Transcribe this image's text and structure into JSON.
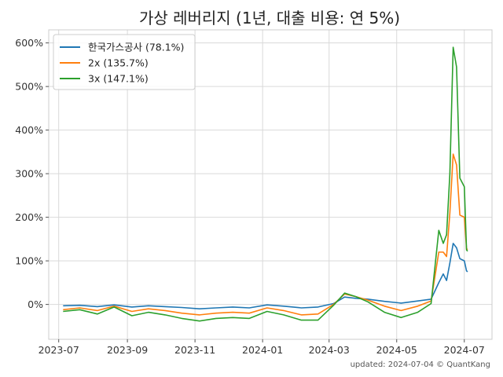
{
  "chart_data": {
    "type": "line",
    "title": "가상 레버리지 (1년, 대출 비용: 연 5%)",
    "footnote": "updated: 2024-07-04 © QuantKang",
    "xlabel": "",
    "ylabel": "",
    "ylim": [
      -80,
      630
    ],
    "xlim": [
      "2023-06-22",
      "2024-07-26"
    ],
    "x_ticks": [
      "2023-07",
      "2023-09",
      "2023-11",
      "2024-01",
      "2024-03",
      "2024-05",
      "2024-07"
    ],
    "y_ticks": [
      0,
      100,
      200,
      300,
      400,
      500,
      600
    ],
    "y_tick_labels": [
      "0%",
      "100%",
      "200%",
      "300%",
      "400%",
      "500%",
      "600%"
    ],
    "grid": true,
    "legend_position": "top-left",
    "series": [
      {
        "name": "한국가스공사 (78.1%)",
        "color": "#1f77b4",
        "points": [
          [
            "2023-07-05",
            -3
          ],
          [
            "2023-07-20",
            -2
          ],
          [
            "2023-08-05",
            -5
          ],
          [
            "2023-08-20",
            -1
          ],
          [
            "2023-09-05",
            -6
          ],
          [
            "2023-09-20",
            -3
          ],
          [
            "2023-10-05",
            -5
          ],
          [
            "2023-10-20",
            -7
          ],
          [
            "2023-11-05",
            -10
          ],
          [
            "2023-11-20",
            -8
          ],
          [
            "2023-12-05",
            -6
          ],
          [
            "2023-12-20",
            -8
          ],
          [
            "2024-01-05",
            -1
          ],
          [
            "2024-01-20",
            -4
          ],
          [
            "2024-02-05",
            -8
          ],
          [
            "2024-02-20",
            -6
          ],
          [
            "2024-03-05",
            2
          ],
          [
            "2024-03-15",
            17
          ],
          [
            "2024-03-25",
            14
          ],
          [
            "2024-04-05",
            12
          ],
          [
            "2024-04-20",
            7
          ],
          [
            "2024-05-05",
            3
          ],
          [
            "2024-05-20",
            8
          ],
          [
            "2024-06-01",
            12
          ],
          [
            "2024-06-08",
            50
          ],
          [
            "2024-06-12",
            70
          ],
          [
            "2024-06-15",
            55
          ],
          [
            "2024-06-18",
            95
          ],
          [
            "2024-06-21",
            140
          ],
          [
            "2024-06-24",
            130
          ],
          [
            "2024-06-27",
            105
          ],
          [
            "2024-07-01",
            100
          ],
          [
            "2024-07-03",
            77
          ],
          [
            "2024-07-04",
            75
          ]
        ]
      },
      {
        "name": "2x (135.7%)",
        "color": "#ff7f0e",
        "points": [
          [
            "2023-07-05",
            -12
          ],
          [
            "2023-07-20",
            -8
          ],
          [
            "2023-08-05",
            -14
          ],
          [
            "2023-08-20",
            -4
          ],
          [
            "2023-09-05",
            -16
          ],
          [
            "2023-09-20",
            -10
          ],
          [
            "2023-10-05",
            -14
          ],
          [
            "2023-10-20",
            -20
          ],
          [
            "2023-11-05",
            -24
          ],
          [
            "2023-11-20",
            -20
          ],
          [
            "2023-12-05",
            -18
          ],
          [
            "2023-12-20",
            -20
          ],
          [
            "2024-01-05",
            -8
          ],
          [
            "2024-01-20",
            -14
          ],
          [
            "2024-02-05",
            -24
          ],
          [
            "2024-02-20",
            -22
          ],
          [
            "2024-03-05",
            0
          ],
          [
            "2024-03-15",
            24
          ],
          [
            "2024-03-25",
            18
          ],
          [
            "2024-04-05",
            10
          ],
          [
            "2024-04-20",
            -4
          ],
          [
            "2024-05-05",
            -14
          ],
          [
            "2024-05-20",
            -4
          ],
          [
            "2024-06-01",
            8
          ],
          [
            "2024-06-08",
            120
          ],
          [
            "2024-06-12",
            120
          ],
          [
            "2024-06-15",
            110
          ],
          [
            "2024-06-18",
            210
          ],
          [
            "2024-06-21",
            345
          ],
          [
            "2024-06-24",
            320
          ],
          [
            "2024-06-27",
            205
          ],
          [
            "2024-07-01",
            200
          ],
          [
            "2024-07-03",
            128
          ],
          [
            "2024-07-04",
            126
          ]
        ]
      },
      {
        "name": "3x (147.1%)",
        "color": "#2ca02c",
        "points": [
          [
            "2023-07-05",
            -16
          ],
          [
            "2023-07-20",
            -12
          ],
          [
            "2023-08-05",
            -22
          ],
          [
            "2023-08-20",
            -6
          ],
          [
            "2023-09-05",
            -26
          ],
          [
            "2023-09-20",
            -18
          ],
          [
            "2023-10-05",
            -24
          ],
          [
            "2023-10-20",
            -32
          ],
          [
            "2023-11-05",
            -38
          ],
          [
            "2023-11-20",
            -32
          ],
          [
            "2023-12-05",
            -30
          ],
          [
            "2023-12-20",
            -32
          ],
          [
            "2024-01-05",
            -16
          ],
          [
            "2024-01-20",
            -24
          ],
          [
            "2024-02-05",
            -36
          ],
          [
            "2024-02-20",
            -36
          ],
          [
            "2024-03-05",
            -2
          ],
          [
            "2024-03-15",
            26
          ],
          [
            "2024-03-25",
            18
          ],
          [
            "2024-04-05",
            6
          ],
          [
            "2024-04-20",
            -18
          ],
          [
            "2024-05-05",
            -30
          ],
          [
            "2024-05-20",
            -18
          ],
          [
            "2024-06-01",
            2
          ],
          [
            "2024-06-08",
            170
          ],
          [
            "2024-06-12",
            140
          ],
          [
            "2024-06-15",
            160
          ],
          [
            "2024-06-18",
            300
          ],
          [
            "2024-06-21",
            590
          ],
          [
            "2024-06-24",
            545
          ],
          [
            "2024-06-27",
            290
          ],
          [
            "2024-07-01",
            270
          ],
          [
            "2024-07-03",
            125
          ],
          [
            "2024-07-04",
            122
          ]
        ]
      }
    ]
  }
}
